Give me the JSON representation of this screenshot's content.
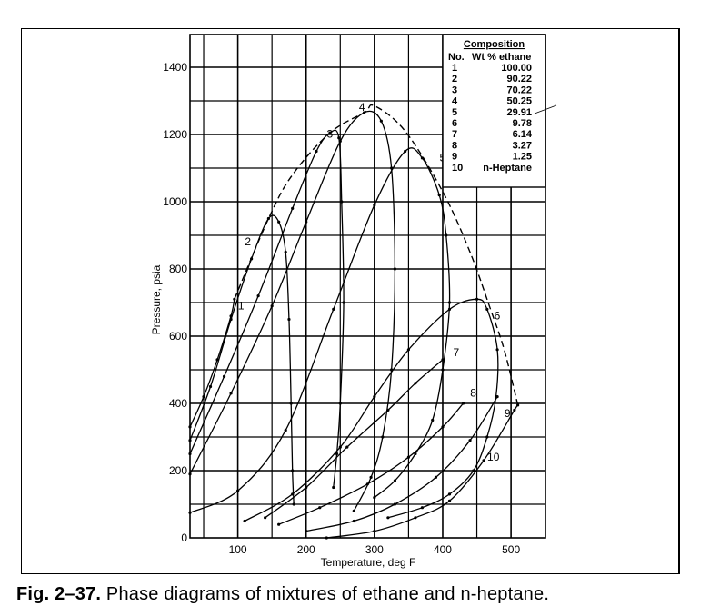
{
  "figure": {
    "caption_prefix": "Fig. 2–37.",
    "caption_text": " Phase diagrams of mixtures of ethane and n-heptane."
  },
  "chart_data": {
    "type": "line",
    "title": "",
    "xlabel": "Temperature, deg F",
    "ylabel": "Pressure, psia",
    "xlim": [
      30,
      550
    ],
    "ylim": [
      0,
      1480
    ],
    "x_ticks": [
      100,
      200,
      300,
      400,
      500
    ],
    "y_ticks": [
      0,
      200,
      400,
      600,
      800,
      1000,
      1200,
      1400
    ],
    "grid": true,
    "grid_x_step": 50,
    "grid_y_step": 100,
    "legend": {
      "title": "Composition",
      "col_headers": [
        "No.",
        "Wt % ethane"
      ],
      "position": "upper right",
      "rows": [
        {
          "no": "1",
          "value": "100.00"
        },
        {
          "no": "2",
          "value": "90.22"
        },
        {
          "no": "3",
          "value": "70.22"
        },
        {
          "no": "4",
          "value": "50.25"
        },
        {
          "no": "5",
          "value": "29.91"
        },
        {
          "no": "6",
          "value": "9.78"
        },
        {
          "no": "7",
          "value": "6.14"
        },
        {
          "no": "8",
          "value": "3.27"
        },
        {
          "no": "9",
          "value": "1.25"
        },
        {
          "no": "10",
          "value": "n-Heptane"
        }
      ]
    },
    "series": [
      {
        "name": "1",
        "label_at": [
          95,
          680
        ],
        "points": [
          [
            30,
            330
          ],
          [
            50,
            420
          ],
          [
            70,
            530
          ],
          [
            90,
            660
          ],
          [
            95,
            710
          ]
        ]
      },
      {
        "name": "2",
        "label_at": [
          105,
          870
        ],
        "points": [
          [
            30,
            290
          ],
          [
            60,
            450
          ],
          [
            90,
            650
          ],
          [
            120,
            830
          ],
          [
            145,
            950
          ],
          [
            160,
            940
          ],
          [
            170,
            850
          ],
          [
            175,
            650
          ],
          [
            178,
            400
          ],
          [
            180,
            200
          ],
          [
            182,
            100
          ]
        ]
      },
      {
        "name": "3",
        "label_at": [
          225,
          1190
        ],
        "points": [
          [
            30,
            250
          ],
          [
            80,
            480
          ],
          [
            130,
            720
          ],
          [
            180,
            980
          ],
          [
            215,
            1150
          ],
          [
            235,
            1205
          ],
          [
            248,
            1190
          ],
          [
            252,
            1000
          ],
          [
            255,
            700
          ],
          [
            250,
            400
          ],
          [
            245,
            250
          ],
          [
            240,
            150
          ]
        ]
      },
      {
        "name": "4",
        "label_at": [
          272,
          1270
        ],
        "points": [
          [
            30,
            190
          ],
          [
            90,
            430
          ],
          [
            150,
            690
          ],
          [
            200,
            940
          ],
          [
            250,
            1180
          ],
          [
            285,
            1265
          ],
          [
            310,
            1240
          ],
          [
            325,
            1100
          ],
          [
            330,
            800
          ],
          [
            325,
            500
          ],
          [
            312,
            300
          ],
          [
            295,
            180
          ],
          [
            270,
            80
          ]
        ]
      },
      {
        "name": "5",
        "label_at": [
          390,
          1120
        ],
        "points": [
          [
            30,
            75
          ],
          [
            100,
            140
          ],
          [
            170,
            320
          ],
          [
            240,
            680
          ],
          [
            300,
            990
          ],
          [
            345,
            1150
          ],
          [
            370,
            1130
          ],
          [
            395,
            1020
          ],
          [
            405,
            900
          ],
          [
            410,
            700
          ],
          [
            400,
            500
          ],
          [
            385,
            350
          ],
          [
            360,
            250
          ],
          [
            330,
            170
          ],
          [
            300,
            120
          ]
        ]
      },
      {
        "name": "6",
        "label_at": [
          470,
          650
        ],
        "points": [
          [
            110,
            50
          ],
          [
            180,
            130
          ],
          [
            250,
            270
          ],
          [
            300,
            420
          ],
          [
            350,
            560
          ],
          [
            410,
            680
          ],
          [
            450,
            710
          ],
          [
            465,
            680
          ],
          [
            480,
            560
          ],
          [
            478,
            420
          ],
          [
            465,
            300
          ],
          [
            445,
            200
          ],
          [
            410,
            130
          ],
          [
            370,
            90
          ],
          [
            320,
            60
          ]
        ]
      },
      {
        "name": "7",
        "label_at": [
          410,
          540
        ],
        "points": [
          [
            140,
            60
          ],
          [
            200,
            150
          ],
          [
            260,
            270
          ],
          [
            320,
            380
          ],
          [
            360,
            460
          ],
          [
            400,
            530
          ]
        ]
      },
      {
        "name": "8",
        "label_at": [
          435,
          420
        ],
        "points": [
          [
            160,
            40
          ],
          [
            220,
            90
          ],
          [
            290,
            160
          ],
          [
            350,
            240
          ],
          [
            400,
            330
          ],
          [
            430,
            400
          ]
        ]
      },
      {
        "name": "9",
        "label_at": [
          485,
          360
        ],
        "points": [
          [
            200,
            20
          ],
          [
            270,
            50
          ],
          [
            330,
            100
          ],
          [
            390,
            180
          ],
          [
            440,
            290
          ],
          [
            480,
            420
          ]
        ]
      },
      {
        "name": "10",
        "label_at": [
          460,
          230
        ],
        "points": [
          [
            230,
            0
          ],
          [
            300,
            20
          ],
          [
            360,
            60
          ],
          [
            410,
            110
          ],
          [
            460,
            230
          ],
          [
            505,
            380
          ],
          [
            510,
            395
          ]
        ]
      },
      {
        "name": "critical-locus",
        "style": "dashed",
        "points": [
          [
            95,
            710
          ],
          [
            145,
            950
          ],
          [
            180,
            1080
          ],
          [
            235,
            1205
          ],
          [
            285,
            1265
          ],
          [
            300,
            1285
          ],
          [
            345,
            1210
          ],
          [
            400,
            1030
          ],
          [
            440,
            850
          ],
          [
            470,
            680
          ],
          [
            490,
            560
          ],
          [
            510,
            395
          ]
        ]
      }
    ]
  }
}
